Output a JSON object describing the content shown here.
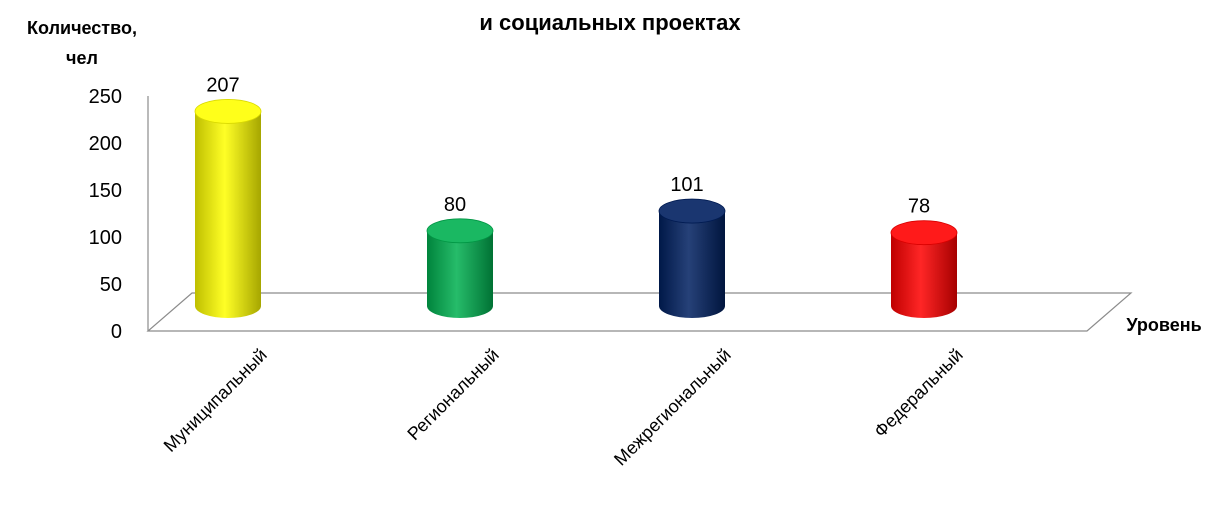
{
  "chart_data": {
    "type": "bar",
    "title": "и социальных проектах",
    "ylabel_line1": "Количество,",
    "ylabel_line2": "чел",
    "xlabel": "Уровень",
    "ylim": [
      0,
      250
    ],
    "yticks": [
      0,
      50,
      100,
      150,
      200,
      250
    ],
    "categories": [
      "Муниципальный",
      "Региональный",
      "Межрегиональный",
      "Федеральный"
    ],
    "values": [
      207,
      80,
      101,
      78
    ],
    "colors": [
      "#ffff00",
      "#00b050",
      "#002060",
      "#ff0000"
    ]
  }
}
